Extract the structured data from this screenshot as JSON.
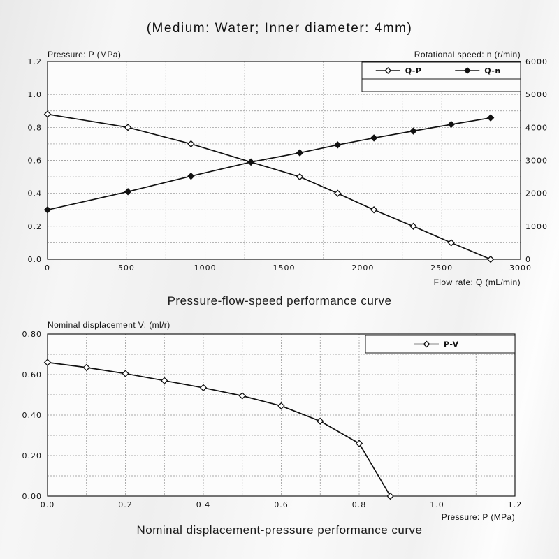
{
  "header": {
    "title": "(Medium: Water; Inner diameter: 4mm)"
  },
  "chart_data": [
    {
      "type": "line",
      "title": "Pressure-flow-speed performance curve",
      "legend_position": "top-right-inside",
      "grid": true,
      "axes": {
        "x": {
          "label": "Flow rate: Q (mL/min)",
          "min": 0,
          "max": 3000,
          "grid_step": 250,
          "ticks": [
            0,
            500,
            1000,
            1500,
            2000,
            2500,
            3000
          ],
          "tick_labels": [
            "0",
            "500",
            "1000",
            "1500",
            "2000",
            "2500",
            "3000"
          ]
        },
        "y_left": {
          "label": "Pressure: P (MPa)",
          "min": 0,
          "max": 1.2,
          "grid_step": 0.1,
          "ticks": [
            0,
            0.2,
            0.4,
            0.6,
            0.8,
            1.0,
            1.2
          ],
          "tick_labels": [
            "0.0",
            "0.2",
            "0.4",
            "0.6",
            "0.8",
            "1.0",
            "1.2"
          ]
        },
        "y_right": {
          "label": "Rotational speed: n (r/min)",
          "min": 0,
          "max": 6000,
          "ticks": [
            0,
            1000,
            2000,
            3000,
            4000,
            5000,
            6000
          ],
          "tick_labels": [
            "0",
            "1000",
            "2000",
            "3000",
            "4000",
            "5000",
            "6000"
          ]
        }
      },
      "series": [
        {
          "name": "Q-P",
          "axis": "left",
          "marker": "open-diamond",
          "color": "#111111",
          "points": [
            [
              0,
              0.88
            ],
            [
              510,
              0.8
            ],
            [
              910,
              0.7
            ],
            [
              1290,
              0.59
            ],
            [
              1600,
              0.5
            ],
            [
              1840,
              0.4
            ],
            [
              2070,
              0.3
            ],
            [
              2320,
              0.2
            ],
            [
              2560,
              0.1
            ],
            [
              2810,
              0.0
            ]
          ]
        },
        {
          "name": "Q-n",
          "axis": "right",
          "marker": "filled-diamond",
          "color": "#111111",
          "points": [
            [
              0,
              1500
            ],
            [
              510,
              2050
            ],
            [
              910,
              2520
            ],
            [
              1290,
              2950
            ],
            [
              1600,
              3230
            ],
            [
              1840,
              3470
            ],
            [
              2070,
              3680
            ],
            [
              2320,
              3890
            ],
            [
              2560,
              4090
            ],
            [
              2810,
              4290
            ]
          ]
        }
      ],
      "legend": [
        "Q-P",
        "Q-n"
      ]
    },
    {
      "type": "line",
      "title": "Nominal displacement-pressure performance curve",
      "legend_position": "top-right-inside",
      "grid": true,
      "axes": {
        "x": {
          "label": "Pressure: P (MPa)",
          "min": 0,
          "max": 1.2,
          "grid_step": 0.1,
          "ticks": [
            0,
            0.2,
            0.4,
            0.6,
            0.8,
            1.0,
            1.2
          ],
          "tick_labels": [
            "0.0",
            "0.2",
            "0.4",
            "0.6",
            "0.8",
            "1.0",
            "1.2"
          ]
        },
        "y_left": {
          "label": "Nominal displacement V: (ml/r)",
          "min": 0,
          "max": 0.8,
          "grid_step": 0.1,
          "ticks": [
            0,
            0.2,
            0.4,
            0.6,
            0.8
          ],
          "tick_labels": [
            "0.00",
            "0.20",
            "0.40",
            "0.60",
            "0.80"
          ]
        }
      },
      "series": [
        {
          "name": "P-V",
          "axis": "left",
          "marker": "open-diamond",
          "color": "#111111",
          "points": [
            [
              0,
              0.66
            ],
            [
              0.1,
              0.635
            ],
            [
              0.2,
              0.605
            ],
            [
              0.3,
              0.57
            ],
            [
              0.4,
              0.535
            ],
            [
              0.5,
              0.495
            ],
            [
              0.6,
              0.445
            ],
            [
              0.7,
              0.37
            ],
            [
              0.8,
              0.26
            ],
            [
              0.88,
              0.0
            ]
          ]
        }
      ],
      "legend": [
        "P-V"
      ]
    }
  ]
}
